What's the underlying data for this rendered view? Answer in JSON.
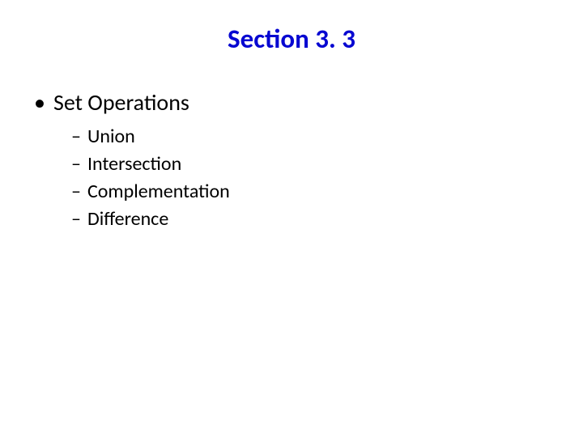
{
  "slide": {
    "title": "Section 3. 3",
    "title_color": "#0707d1",
    "title_fontsize": 33,
    "title_weight": 700,
    "background_color": "#ffffff",
    "text_color": "#000000",
    "font_family": "Calibri, Arial, sans-serif",
    "bullets": {
      "level1": [
        {
          "marker": "•",
          "text": "Set Operations",
          "fontsize": 28
        }
      ],
      "level2": [
        {
          "marker": "–",
          "text": "Union",
          "fontsize": 24
        },
        {
          "marker": "–",
          "text": "Intersection",
          "fontsize": 24
        },
        {
          "marker": "–",
          "text": "Complementation",
          "fontsize": 24
        },
        {
          "marker": "–",
          "text": "Difference",
          "fontsize": 24
        }
      ]
    }
  }
}
